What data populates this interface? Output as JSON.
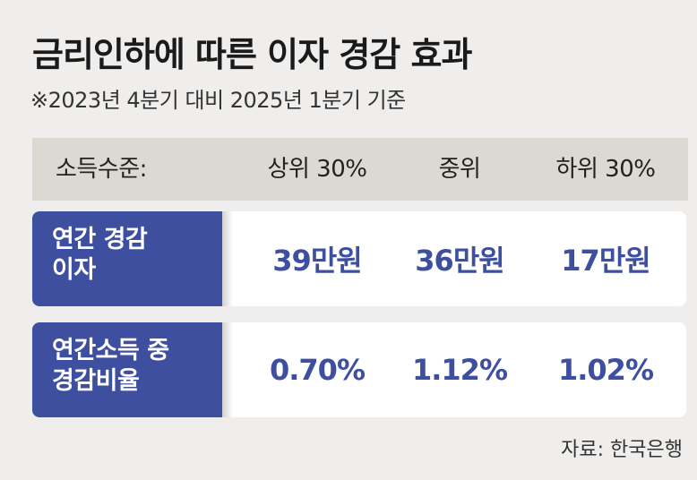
{
  "title": "금리인하에 따른 이자 경감 효과",
  "subtitle": "※2023년 4분기 대비 2025년 1분기 기준",
  "source": "자료: 한국은행",
  "colors": {
    "accent": "#3e4fa0",
    "header_bg": "#dcd9d2",
    "page_bg": "#efeeec",
    "cell_bg": "#ffffff"
  },
  "chart_data": {
    "type": "table",
    "title": "금리인하에 따른 이자 경감 효과",
    "subtitle": "※2023년 4분기 대비 2025년 1분기 기준",
    "header_label": "소득수준:",
    "columns": [
      "상위 30%",
      "중위",
      "하위 30%"
    ],
    "rows": [
      {
        "label_lines": [
          "연간 경감",
          "이자"
        ],
        "values": [
          "39만원",
          "36만원",
          "17만원"
        ],
        "numeric": [
          39,
          36,
          17
        ],
        "unit": "만원"
      },
      {
        "label_lines": [
          "연간소득 중",
          "경감비율"
        ],
        "values": [
          "0.70%",
          "1.12%",
          "1.02%"
        ],
        "numeric": [
          0.7,
          1.12,
          1.02
        ],
        "unit": "%"
      }
    ],
    "source": "자료: 한국은행"
  }
}
